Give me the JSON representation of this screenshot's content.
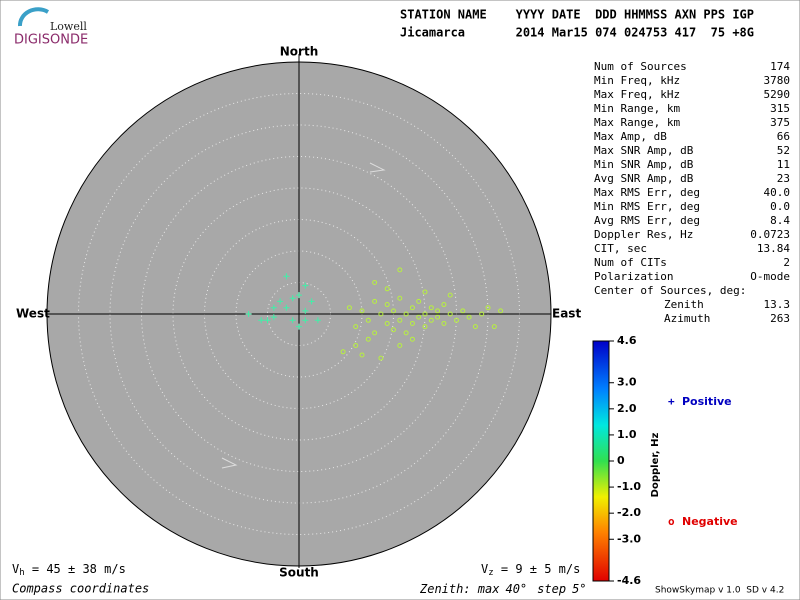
{
  "logo": {
    "top": "Lowell",
    "bottom": "DIGISONDE"
  },
  "header": {
    "line1": "STATION NAME    YYYY DATE  DDD HHMMSS AXN PPS IGP",
    "line2": "Jicamarca       2014 Mar15 074 024753 417  75 +8G"
  },
  "stats": {
    "rows": [
      [
        "Num of Sources",
        174
      ],
      [
        "Min Freq, kHz",
        3780
      ],
      [
        "Max Freq, kHz",
        5290
      ],
      [
        "Min Range, km",
        315
      ],
      [
        "Max Range, km",
        375
      ],
      [
        "Max Amp, dB",
        66
      ],
      [
        "Max SNR Amp, dB",
        52
      ],
      [
        "Min SNR Amp, dB",
        11
      ],
      [
        "Avg SNR Amp, dB",
        23
      ],
      [
        "Max RMS Err, deg",
        "40.0"
      ],
      [
        "Min RMS Err, deg",
        "0.0"
      ],
      [
        "Avg RMS Err, deg",
        8.4
      ],
      [
        "Doppler Res, Hz",
        0.0723
      ],
      [
        "CIT, sec",
        13.84
      ],
      [
        "Num of CITs",
        2
      ],
      [
        "Polarization",
        "O-mode"
      ]
    ],
    "center_title": "Center of Sources, deg:",
    "center_rows": [
      [
        "Zenith",
        13.3
      ],
      [
        "Azimuth",
        263
      ]
    ]
  },
  "chart_data": {
    "type": "skymap",
    "directions": {
      "north": "North",
      "south": "South",
      "west": "West",
      "east": "East"
    },
    "series": [
      {
        "name": "Positive",
        "marker": "+",
        "color": "#40f0a8",
        "legend_color": "#0000c0",
        "east": [
          -3,
          -4,
          -2,
          -5,
          -6,
          -4,
          -1,
          0,
          1,
          1,
          2,
          -2,
          -1,
          -8,
          0,
          1,
          3
        ],
        "north": [
          2,
          1,
          1,
          -1,
          -1,
          -0.5,
          -1,
          -2,
          0.5,
          -1,
          2,
          6,
          2.5,
          0,
          3,
          4.5,
          -1
        ]
      },
      {
        "name": "Negative",
        "marker": "o",
        "color": "#b8f040",
        "legend_color": "#e00000",
        "east": [
          8,
          9,
          10,
          11,
          12,
          12,
          13,
          14,
          14,
          15,
          15,
          16,
          16,
          17,
          17,
          18,
          18,
          19,
          19,
          20,
          20,
          21,
          21,
          22,
          22,
          23,
          23,
          24,
          25,
          26,
          27,
          29,
          30,
          31,
          9,
          7,
          13,
          11,
          16,
          12,
          16,
          20,
          24,
          14,
          10,
          18,
          28,
          32
        ],
        "north": [
          1,
          -2,
          0.5,
          -1,
          2,
          -3,
          0,
          -1.5,
          1.5,
          -2.5,
          0.5,
          -1,
          2.5,
          0,
          -3,
          1,
          -1.5,
          -0.5,
          2,
          0,
          -2,
          1,
          -1,
          0.5,
          -0.5,
          -1.5,
          1.5,
          0,
          -1,
          0.5,
          -0.5,
          0,
          1,
          -2,
          -5,
          -6,
          -7,
          -4,
          -5,
          5,
          7,
          3.5,
          3,
          4,
          -6.5,
          -4,
          -2,
          0.5
        ]
      }
    ],
    "colorbar": {
      "title": "Doppler, Hz",
      "lim": [
        -4.6,
        4.6
      ],
      "ticks": [
        4.6,
        {
          "value": 3,
          "label": "3.0"
        },
        {
          "value": 2,
          "label": "2.0"
        },
        {
          "value": 1,
          "label": "1.0"
        },
        0,
        {
          "value": -1,
          "label": "-1.0"
        },
        {
          "value": -2,
          "label": "-2.0"
        },
        {
          "value": -3,
          "label": "-3.0"
        },
        -4.6
      ]
    },
    "vh": {
      "symbol": "V",
      "subscript": "h",
      "text": " = 45 ± 38 m/s"
    },
    "vz": {
      "symbol": "V",
      "subscript": "z",
      "text": " = 9 ± 5 m/s"
    },
    "coords": "Compass coordinates",
    "zenith": {
      "text": "Zenith: max",
      "max": {
        "value": 40,
        "label": "40°"
      },
      "step_text": "step",
      "step": {
        "value": 5,
        "label": "5°"
      }
    },
    "version": "ShowSkymap v 1.0  SD v 4.2"
  }
}
